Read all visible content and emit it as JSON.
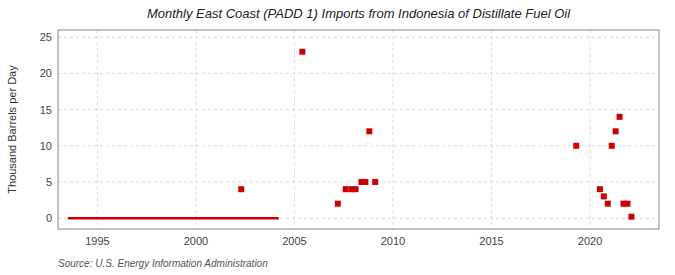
{
  "chart_data": {
    "type": "scatter",
    "title": "Monthly East Coast (PADD 1) Imports from Indonesia of Distillate Fuel Oil",
    "y_label": "Thousand Barrels per Day",
    "annotations": [
      "Source: U.S. Energy Information Administration"
    ],
    "xlim": [
      1993.0,
      2023.5
    ],
    "ylim": [
      -1.5,
      26
    ],
    "xticks": [
      1995,
      2000,
      2005,
      2010,
      2015,
      2020
    ],
    "yticks": [
      0,
      5,
      10,
      15,
      20,
      25
    ],
    "grid": true,
    "series": [
      {
        "type": "scatter",
        "color": "#cc0000",
        "marker": "square",
        "x": [
          2002.3,
          2005.4,
          2007.2,
          2007.6,
          2007.9,
          2008.1,
          2008.4,
          2008.6,
          2008.8,
          2009.1,
          2019.3,
          2020.5,
          2020.7,
          2020.9,
          2021.1,
          2021.3,
          2021.5,
          2021.7,
          2021.9,
          2022.1
        ],
        "values": [
          4.0,
          23.0,
          2.0,
          4.0,
          4.0,
          4.0,
          5.0,
          5.0,
          12.0,
          5.0,
          10.0,
          4.0,
          3.0,
          2.0,
          10.0,
          12.0,
          14.0,
          2.0,
          2.0,
          0.2
        ]
      },
      {
        "type": "line",
        "color": "#cc0000",
        "line_style": "solid",
        "x": [
          1993.5,
          2004.2
        ],
        "values": [
          0,
          0
        ]
      }
    ]
  }
}
